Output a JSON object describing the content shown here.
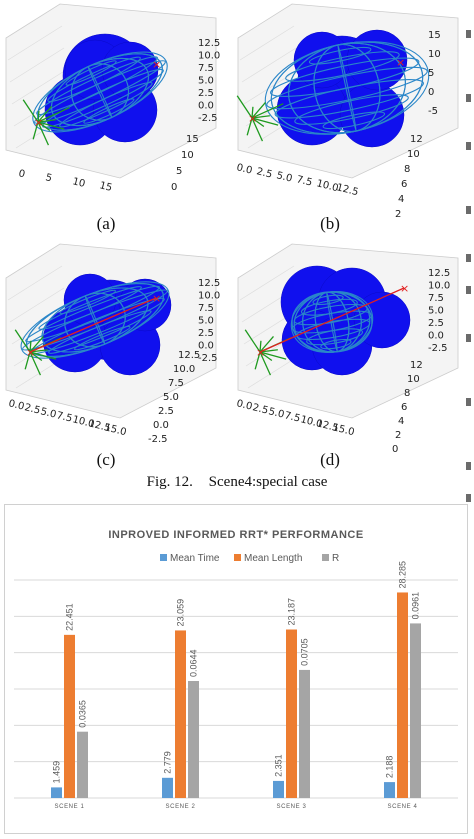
{
  "figure": {
    "panels": [
      {
        "label": "(a)",
        "z_ticks": [
          "12.5",
          "10.0",
          "7.5",
          "5.0",
          "2.5",
          "0.0",
          "-2.5"
        ],
        "y_ticks": [
          "15",
          "10",
          "5",
          "0"
        ],
        "x_ticks": [
          "0",
          "5",
          "10",
          "15"
        ]
      },
      {
        "label": "(b)",
        "z_ticks": [
          "15",
          "10",
          "5",
          "0",
          "-5"
        ],
        "y_ticks": [
          "12",
          "10",
          "8",
          "6",
          "4",
          "2"
        ],
        "x_ticks": [
          "0.0",
          "2.5",
          "5.0",
          "7.5",
          "10.0",
          "12.5"
        ]
      },
      {
        "label": "(c)",
        "z_ticks": [
          "12.5",
          "10.0",
          "7.5",
          "5.0",
          "2.5",
          "0.0",
          "-2.5"
        ],
        "y_ticks": [
          "12.5",
          "10.0",
          "7.5",
          "5.0",
          "2.5",
          "0.0",
          "-2.5"
        ],
        "x_ticks": [
          "0.0",
          "2.5",
          "5.0",
          "7.5",
          "10.0",
          "12.5",
          "15.0"
        ]
      },
      {
        "label": "(d)",
        "z_ticks": [
          "12.5",
          "10.0",
          "7.5",
          "5.0",
          "2.5",
          "0.0",
          "-2.5"
        ],
        "y_ticks": [
          "12",
          "10",
          "8",
          "6",
          "4",
          "2",
          "0"
        ],
        "x_ticks": [
          "0.0",
          "2.5",
          "5.0",
          "7.5",
          "10.0",
          "12.5",
          "15.0"
        ]
      }
    ],
    "caption_num": "Fig. 12.",
    "caption_text": "Scene4:special case"
  },
  "colors": {
    "obstacle": "#1010ee",
    "ellipse": "#2a86c8",
    "path": "#e02020",
    "tree": "#1e9a1e",
    "mean_time": "#5b9bd5",
    "mean_length": "#ed7d31",
    "r": "#a5a5a5"
  },
  "chart_data": {
    "type": "bar",
    "title": "INPROVED INFORMED RRT* PERFORMANCE",
    "categories": [
      "SCENE 1",
      "SCENE 2",
      "SCENE 3",
      "SCENE 4"
    ],
    "series": [
      {
        "name": "Mean Time",
        "values": [
          1.459,
          2.779,
          2.351,
          2.188
        ],
        "labels": [
          "1.459",
          "2.779",
          "2.351",
          "2.188"
        ]
      },
      {
        "name": "Mean Length",
        "values": [
          22.451,
          23.059,
          23.187,
          28.285
        ],
        "labels": [
          "22.451",
          "23.059",
          "23.187",
          "28.285"
        ]
      },
      {
        "name": "R",
        "values": [
          0.0365,
          0.0644,
          0.0705,
          0.0961
        ],
        "labels": [
          "0.0365",
          "0.0644",
          "0.0705",
          "0.0961"
        ]
      }
    ],
    "legend_position": "top",
    "grid": true
  }
}
